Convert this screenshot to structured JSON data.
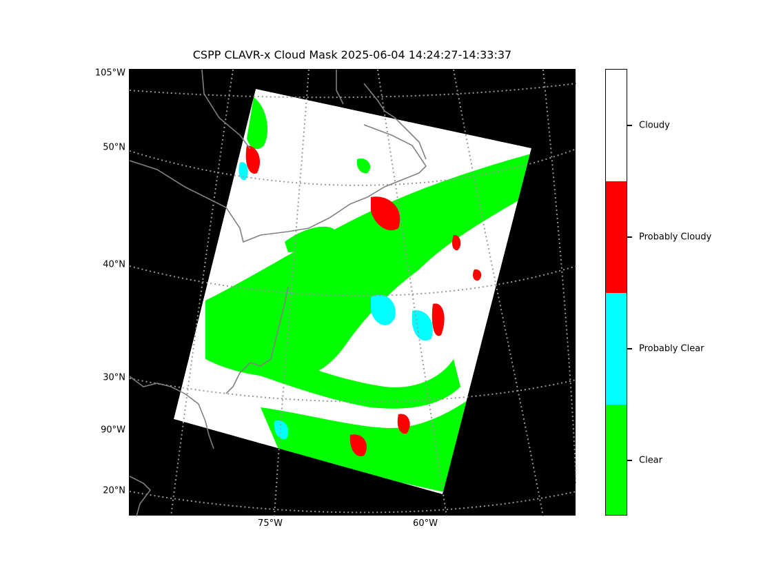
{
  "title": "CSPP CLAVR-x Cloud Mask 2025-06-04 14:24:27-14:33:37",
  "lat_labels": [
    "105°W",
    "50°N",
    "40°N",
    "30°N",
    "90°W",
    "20°N"
  ],
  "lon_labels": [
    "75°W",
    "60°W"
  ],
  "colorbar": {
    "categories": [
      {
        "label": "Cloudy",
        "color": "#ffffff"
      },
      {
        "label": "Probably Cloudy",
        "color": "#ff0000"
      },
      {
        "label": "Probably Clear",
        "color": "#00ffff"
      },
      {
        "label": "Clear",
        "color": "#00ff00"
      }
    ]
  },
  "colors": {
    "background": "#000000",
    "grid": "#999999",
    "coastline": "#808080"
  }
}
